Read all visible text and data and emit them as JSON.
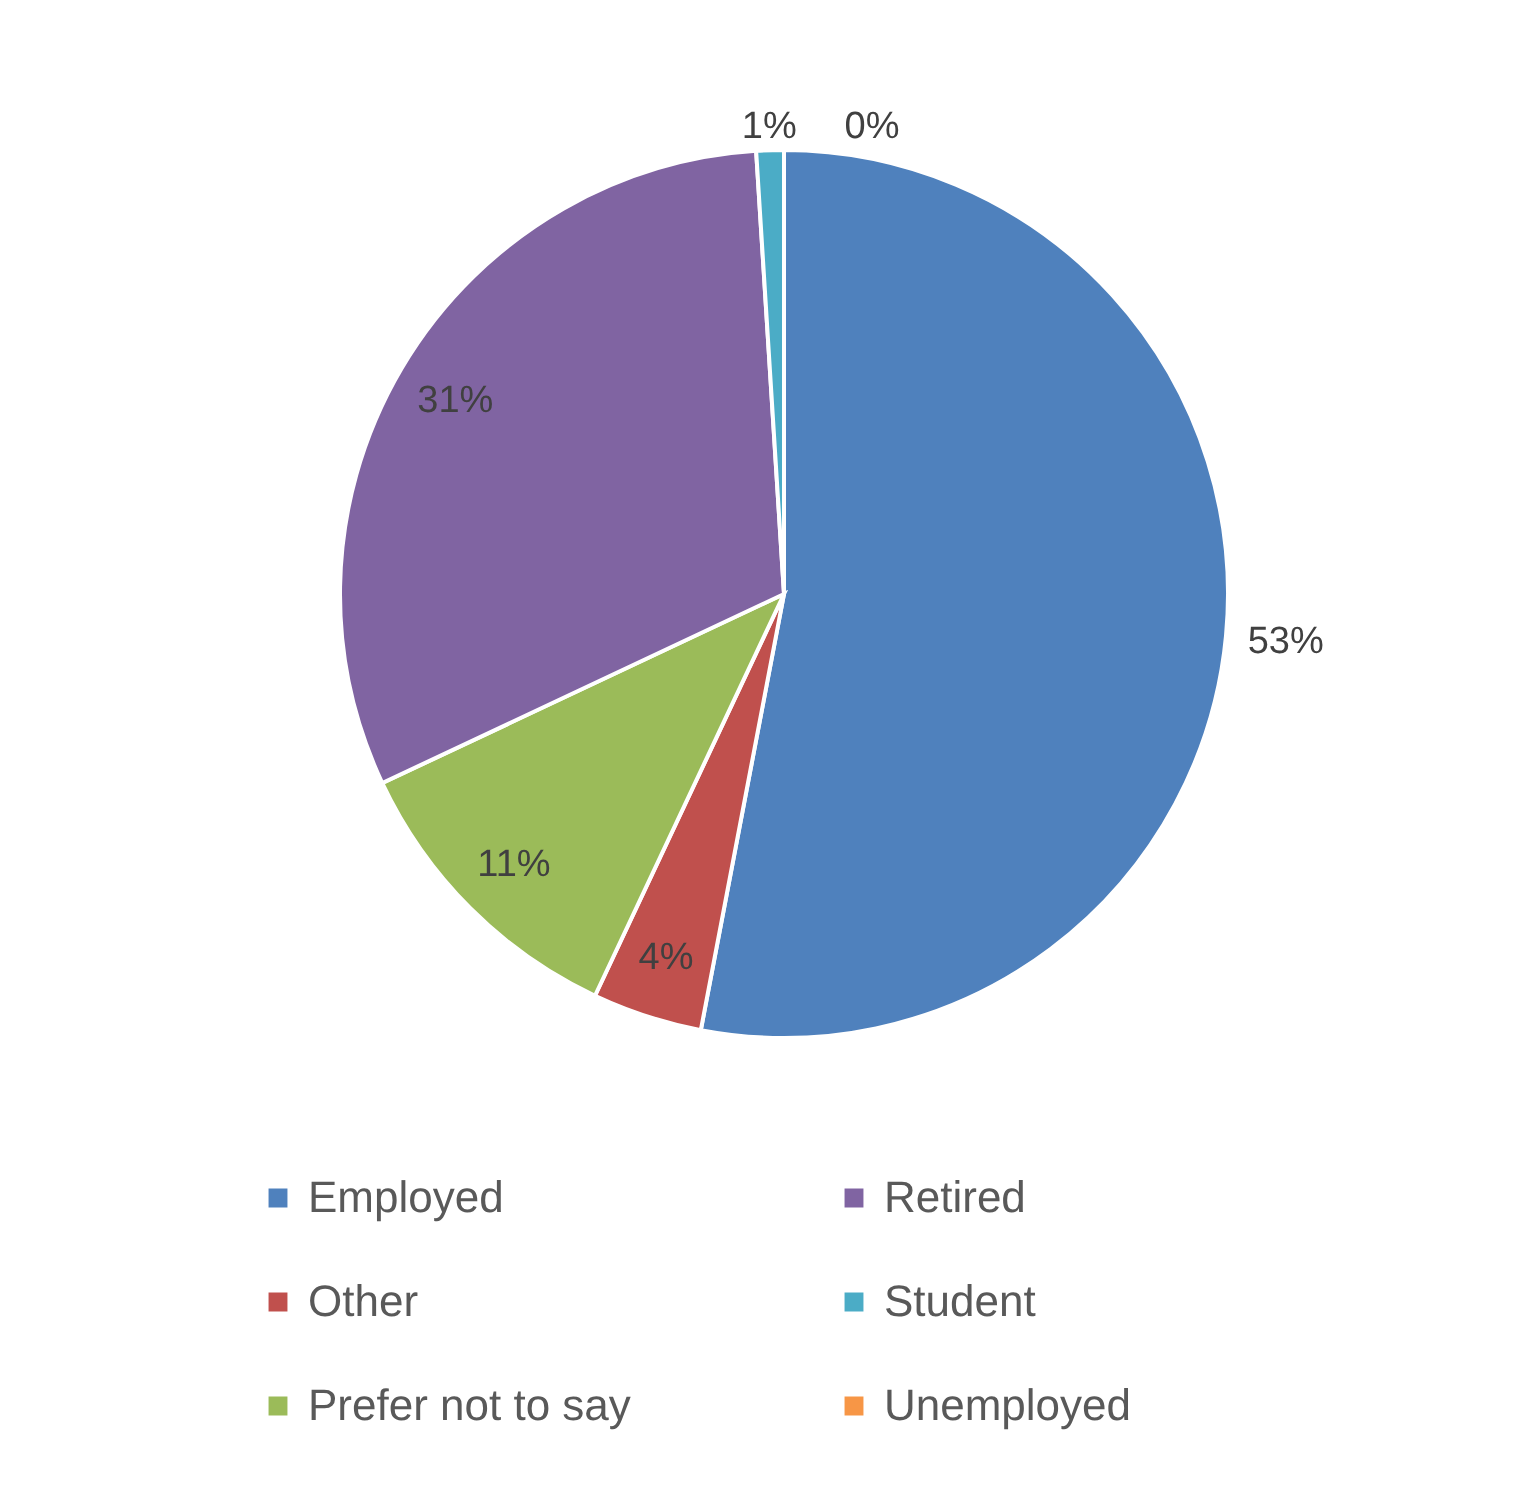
{
  "chart_data": {
    "type": "pie",
    "categories": [
      "Employed",
      "Other",
      "Prefer not to say",
      "Retired",
      "Student",
      "Unemployed"
    ],
    "values": [
      53,
      4,
      11,
      31,
      1,
      0
    ],
    "colors": [
      "#4f81bd",
      "#c0504d",
      "#9bbb59",
      "#8064a2",
      "#4bacc6",
      "#f79646"
    ],
    "value_labels": [
      "53%",
      "4%",
      "11%",
      "31%",
      "1%",
      "0%"
    ],
    "legend": "bottom"
  }
}
